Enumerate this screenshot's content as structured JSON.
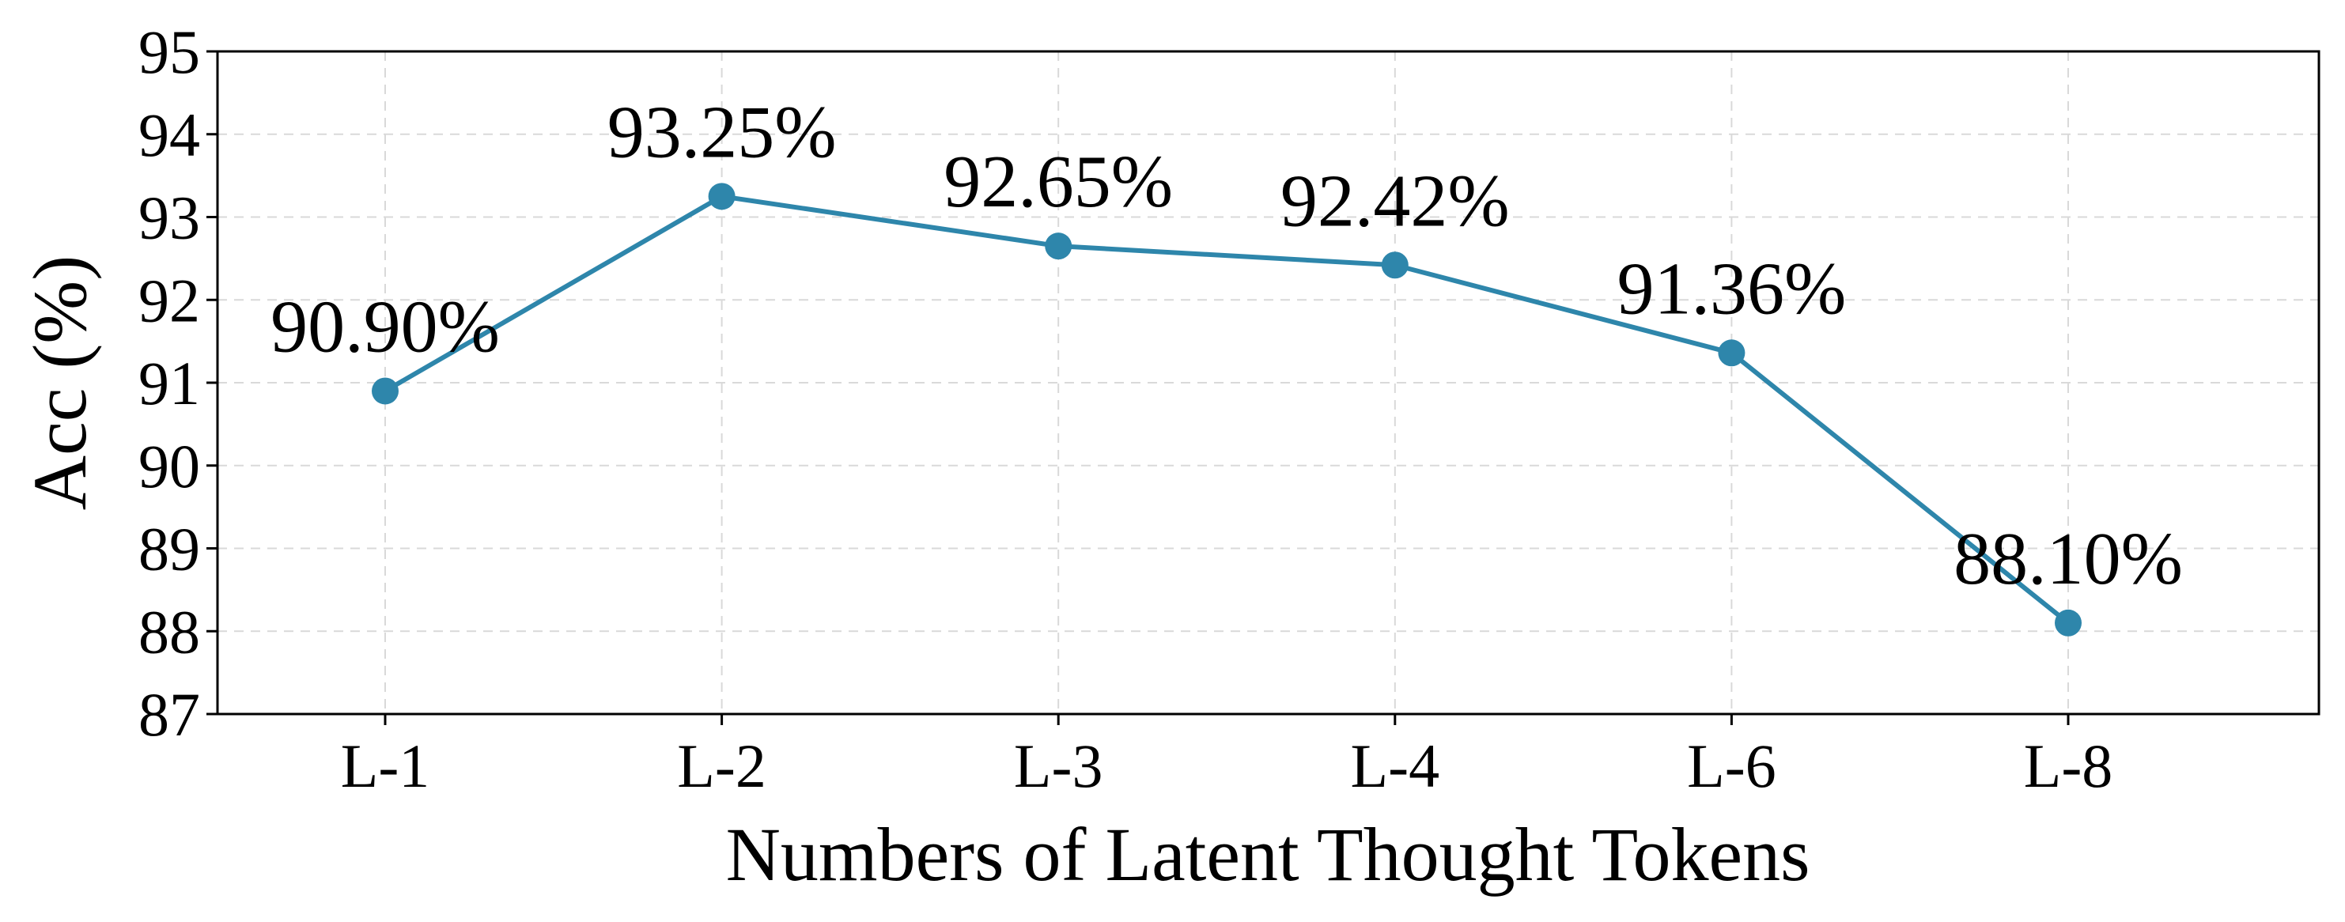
{
  "chart_data": {
    "type": "line",
    "categories": [
      "L-1",
      "L-2",
      "L-3",
      "L-4",
      "L-6",
      "L-8"
    ],
    "series": [
      {
        "values": [
          90.9,
          93.25,
          92.65,
          92.42,
          91.36,
          88.1
        ],
        "labels": [
          "90.90%",
          "93.25%",
          "92.65%",
          "92.42%",
          "91.36%",
          "88.10%"
        ],
        "color": "#2e86ab"
      }
    ],
    "xlabel": "Numbers of Latent Thought Tokens",
    "ylabel": "Acc (%)",
    "ylim": [
      87,
      95
    ],
    "yticks": [
      87,
      88,
      89,
      90,
      91,
      92,
      93,
      94,
      95
    ],
    "grid": true,
    "legend": "none"
  }
}
